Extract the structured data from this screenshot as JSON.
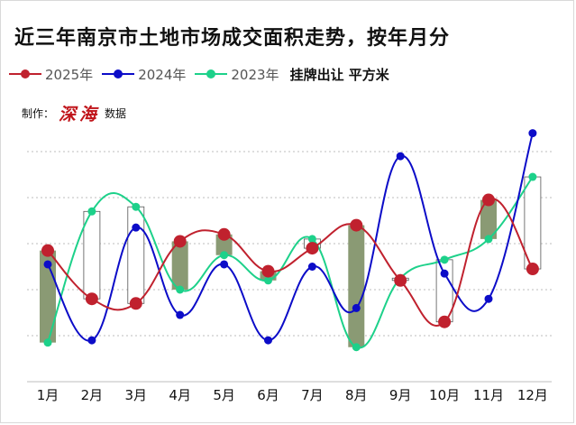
{
  "title": "近三年南京市土地市场成交面积走势，按年月分",
  "legend_note": "挂牌出让  平方米",
  "credit": {
    "prefix": "制作：",
    "brand": "深海",
    "suffix": "数据"
  },
  "colors": {
    "s2025": "#c0212e",
    "s2024": "#0c0cc8",
    "s2023": "#1dd18a",
    "candle_down": "#8a9a74",
    "candle_up": "#ffffff",
    "grid": "#bdbdbd"
  },
  "chart_data": {
    "type": "line",
    "title": "近三年南京市土地市场成交面积走势，按年月分",
    "unit": "挂牌出让 平方米",
    "xlabel": "",
    "ylabel": "",
    "categories": [
      "1月",
      "2月",
      "3月",
      "4月",
      "5月",
      "6月",
      "7月",
      "8月",
      "9月",
      "10月",
      "11月",
      "12月"
    ],
    "y_axis": {
      "min": 0,
      "max": 10,
      "grid_lines": [
        0,
        2,
        4,
        6,
        8,
        10
      ],
      "tick_labels_visible": false
    },
    "series": [
      {
        "name": "2025年",
        "color_key": "s2025",
        "values": [
          5.7,
          3.6,
          3.4,
          6.1,
          6.4,
          4.8,
          5.8,
          6.8,
          4.4,
          2.6,
          7.9,
          4.9
        ]
      },
      {
        "name": "2024年",
        "color_key": "s2024",
        "values": [
          5.1,
          1.8,
          6.7,
          2.9,
          5.1,
          1.8,
          5.0,
          3.2,
          9.8,
          4.7,
          3.6,
          10.8
        ]
      },
      {
        "name": "2023年",
        "color_key": "s2023",
        "values": [
          1.7,
          7.4,
          7.6,
          4.0,
          5.5,
          4.4,
          6.2,
          1.5,
          4.5,
          5.3,
          6.2,
          8.9
        ]
      }
    ],
    "candles": {
      "description": "bar from 2023 value to 2025 value per month",
      "from_series": "2023年",
      "to_series": "2025年"
    },
    "grid": true,
    "legend": "top-left"
  }
}
